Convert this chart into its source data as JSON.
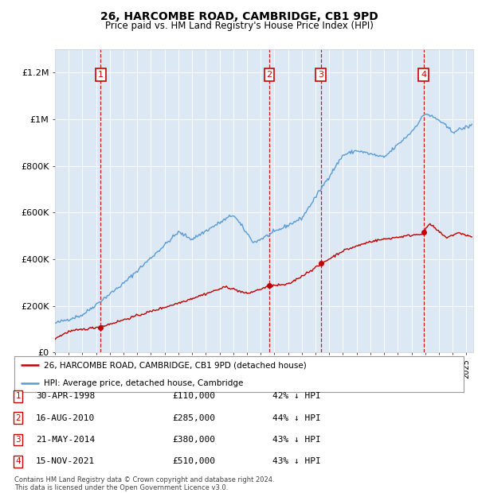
{
  "title": "26, HARCOMBE ROAD, CAMBRIDGE, CB1 9PD",
  "subtitle": "Price paid vs. HM Land Registry's House Price Index (HPI)",
  "background_color": "#dce9f5",
  "hpi_line_color": "#5b9bd5",
  "price_line_color": "#c00000",
  "transaction_color": "#cc0000",
  "ylim": [
    0,
    1300000
  ],
  "yticks": [
    0,
    200000,
    400000,
    600000,
    800000,
    1000000,
    1200000
  ],
  "ytick_labels": [
    "£0",
    "£200K",
    "£400K",
    "£600K",
    "£800K",
    "£1M",
    "£1.2M"
  ],
  "transactions": [
    {
      "num": 1,
      "date": "1998-04-30",
      "price": 110000,
      "pct": "42%",
      "x_approx": 1998.33
    },
    {
      "num": 2,
      "date": "2010-08-16",
      "price": 285000,
      "pct": "44%",
      "x_approx": 2010.62
    },
    {
      "num": 3,
      "date": "2014-05-21",
      "price": 380000,
      "pct": "43%",
      "x_approx": 2014.39
    },
    {
      "num": 4,
      "date": "2021-11-15",
      "price": 510000,
      "pct": "43%",
      "x_approx": 2021.87
    }
  ],
  "legend_entries": [
    "26, HARCOMBE ROAD, CAMBRIDGE, CB1 9PD (detached house)",
    "HPI: Average price, detached house, Cambridge"
  ],
  "table_data": [
    [
      "1",
      "30-APR-1998",
      "£110,000",
      "42% ↓ HPI"
    ],
    [
      "2",
      "16-AUG-2010",
      "£285,000",
      "44% ↓ HPI"
    ],
    [
      "3",
      "21-MAY-2014",
      "£380,000",
      "43% ↓ HPI"
    ],
    [
      "4",
      "15-NOV-2021",
      "£510,000",
      "43% ↓ HPI"
    ]
  ],
  "footer": "Contains HM Land Registry data © Crown copyright and database right 2024.\nThis data is licensed under the Open Government Licence v3.0.",
  "xmin": 1995.0,
  "xmax": 2025.5
}
